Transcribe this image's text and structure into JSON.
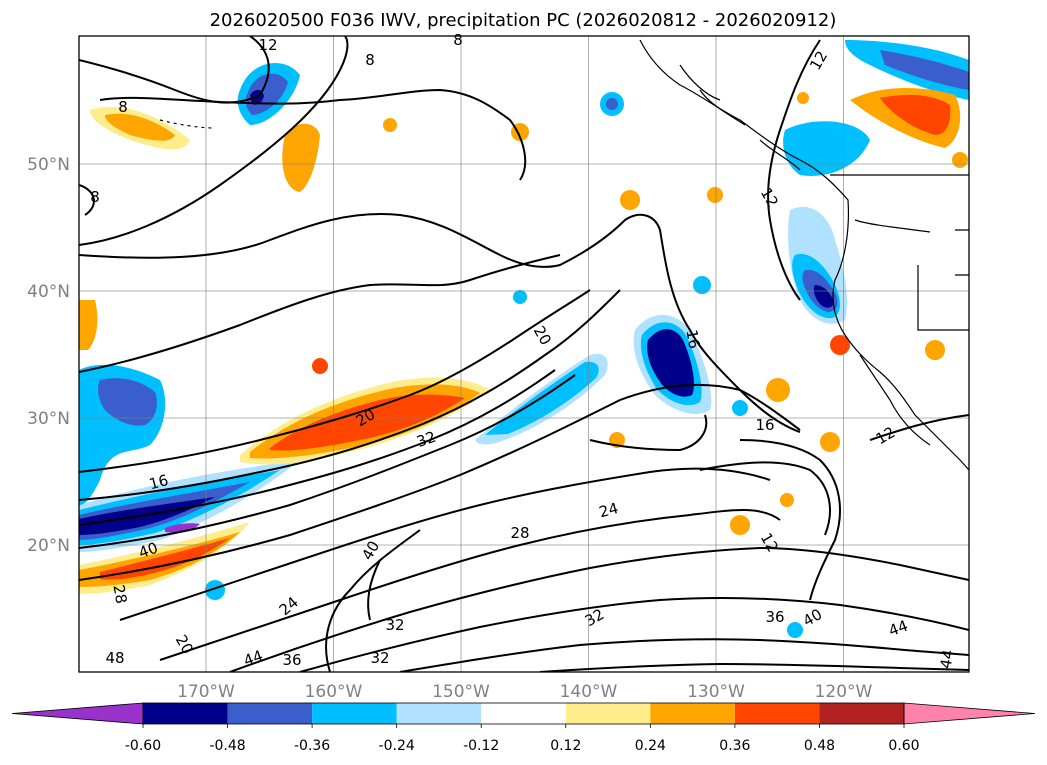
{
  "chart_data": {
    "type": "map-contour",
    "title": "2026020500 F036 IWV, precipitation PC (2026020812 - 2026020912)",
    "lon_range": [
      -180,
      -110
    ],
    "lat_range": [
      10,
      60
    ],
    "latitude_ticks": [
      {
        "value": 50,
        "label": "50°N"
      },
      {
        "value": 40,
        "label": "40°N"
      },
      {
        "value": 30,
        "label": "30°N"
      },
      {
        "value": 20,
        "label": "20°N"
      }
    ],
    "longitude_ticks": [
      {
        "value": -170,
        "label": "170°W"
      },
      {
        "value": -160,
        "label": "160°W"
      },
      {
        "value": -150,
        "label": "150°W"
      },
      {
        "value": -140,
        "label": "140°W"
      },
      {
        "value": -130,
        "label": "130°W"
      },
      {
        "value": -120,
        "label": "120°W"
      }
    ],
    "grid": true,
    "colorbar": {
      "levels": [
        "-0.60",
        "-0.48",
        "-0.36",
        "-0.24",
        "-0.12",
        "0.12",
        "0.24",
        "0.36",
        "0.48",
        "0.60"
      ],
      "colors": [
        "#9932cc",
        "#00008b",
        "#3a5fcd",
        "#00bfff",
        "#b0e2ff",
        "#ffffff",
        "#ffec8b",
        "#ffa500",
        "#ff4500",
        "#b22222",
        "#ff82ab"
      ],
      "extend": "both"
    },
    "contour_labels": [
      "12",
      "8",
      "8",
      "8",
      "12",
      "8",
      "12",
      "16",
      "20",
      "32",
      "16",
      "24",
      "28",
      "16",
      "12",
      "12",
      "40",
      "24",
      "20",
      "32",
      "32",
      "32",
      "36",
      "40",
      "44",
      "44",
      "36",
      "28",
      "20",
      "40",
      "44",
      "48"
    ]
  }
}
